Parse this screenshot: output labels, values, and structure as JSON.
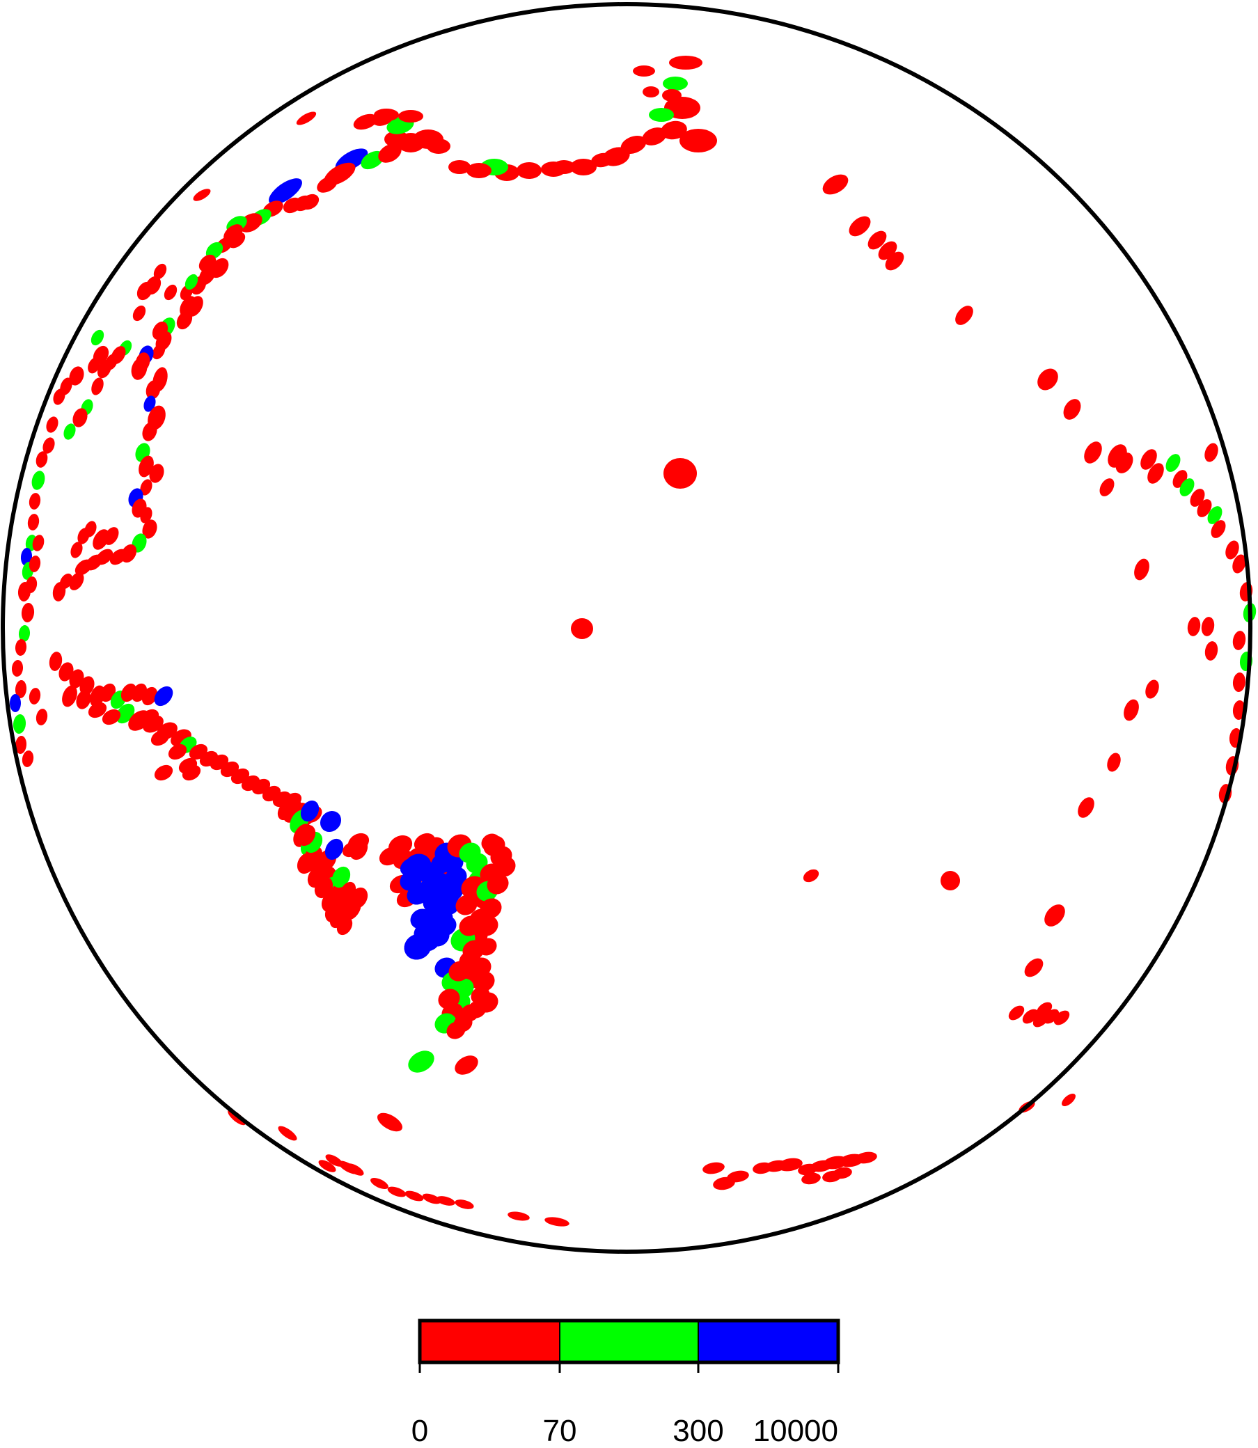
{
  "colors": {
    "shallow": "#ff0000",
    "intermediate": "#00ff00",
    "deep": "#0000ff",
    "outline": "#000000",
    "background": "#ffffff"
  },
  "colorbar": {
    "classes": [
      {
        "from": "0",
        "to": "70",
        "color": "#ff0000"
      },
      {
        "from": "70",
        "to": "300",
        "color": "#00ff00"
      },
      {
        "from": "300",
        "to": "10000",
        "color": "#0000ff"
      }
    ],
    "tick_labels": [
      "0",
      "70",
      "300",
      "10000"
    ]
  }
}
